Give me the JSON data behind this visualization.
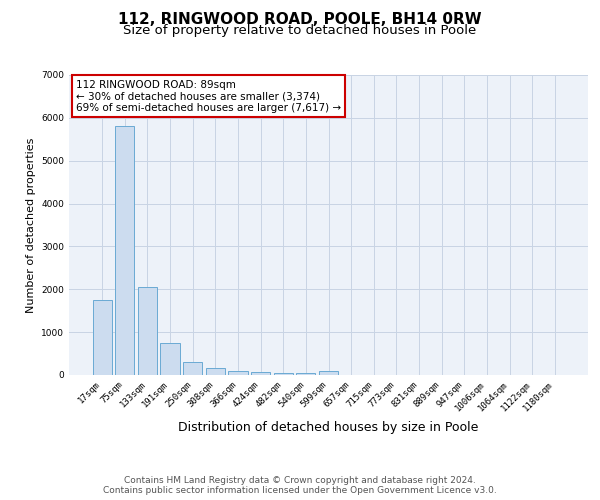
{
  "title1": "112, RINGWOOD ROAD, POOLE, BH14 0RW",
  "title2": "Size of property relative to detached houses in Poole",
  "xlabel": "Distribution of detached houses by size in Poole",
  "ylabel": "Number of detached properties",
  "categories": [
    "17sqm",
    "75sqm",
    "133sqm",
    "191sqm",
    "250sqm",
    "308sqm",
    "366sqm",
    "424sqm",
    "482sqm",
    "540sqm",
    "599sqm",
    "657sqm",
    "715sqm",
    "773sqm",
    "831sqm",
    "889sqm",
    "947sqm",
    "1006sqm",
    "1064sqm",
    "1122sqm",
    "1180sqm"
  ],
  "values": [
    1750,
    5800,
    2050,
    750,
    300,
    170,
    90,
    60,
    50,
    40,
    90,
    0,
    0,
    0,
    0,
    0,
    0,
    0,
    0,
    0,
    0
  ],
  "bar_color": "#ccdcef",
  "bar_edge_color": "#6aaad4",
  "highlight_bar_index": 1,
  "annotation_text": "112 RINGWOOD ROAD: 89sqm\n← 30% of detached houses are smaller (3,374)\n69% of semi-detached houses are larger (7,617) →",
  "annotation_box_color": "#ffffff",
  "annotation_box_edge_color": "#cc0000",
  "ylim": [
    0,
    7000
  ],
  "yticks": [
    0,
    1000,
    2000,
    3000,
    4000,
    5000,
    6000,
    7000
  ],
  "background_color": "#edf2f9",
  "grid_color": "#c8d4e4",
  "footer_text": "Contains HM Land Registry data © Crown copyright and database right 2024.\nContains public sector information licensed under the Open Government Licence v3.0.",
  "title1_fontsize": 11,
  "title2_fontsize": 9.5,
  "xlabel_fontsize": 9,
  "ylabel_fontsize": 8,
  "tick_fontsize": 6.5,
  "footer_fontsize": 6.5,
  "annotation_fontsize": 7.5
}
